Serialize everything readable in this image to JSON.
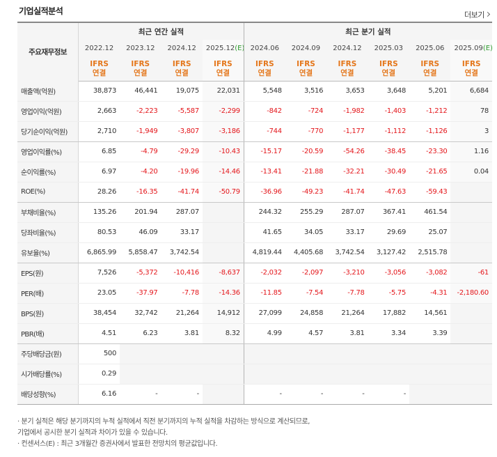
{
  "header": {
    "title": "기업실적분석",
    "more_label": "더보기"
  },
  "table": {
    "row_header_label": "주요재무정보",
    "groups": [
      {
        "label": "최근 연간 실적"
      },
      {
        "label": "최근 분기 실적"
      }
    ],
    "periods": [
      {
        "label": "2022.12",
        "est": false
      },
      {
        "label": "2023.12",
        "est": false
      },
      {
        "label": "2024.12",
        "est": false
      },
      {
        "label": "2025.12",
        "est": true,
        "est_mark": "(E)"
      },
      {
        "label": "2024.06",
        "est": false
      },
      {
        "label": "2024.09",
        "est": false
      },
      {
        "label": "2024.12",
        "est": false
      },
      {
        "label": "2025.03",
        "est": false
      },
      {
        "label": "2025.06",
        "est": false
      },
      {
        "label": "2025.09",
        "est": true,
        "est_mark": "(E)"
      }
    ],
    "acct_top": "IFRS",
    "acct_bottom": "연결",
    "rows": [
      {
        "label": "매출액(억원)",
        "values": [
          "38,873",
          "46,441",
          "19,075",
          "22,031",
          "5,548",
          "3,516",
          "3,653",
          "3,648",
          "5,201",
          "6,684"
        ]
      },
      {
        "label": "영업이익(억원)",
        "values": [
          "2,663",
          "-2,223",
          "-5,587",
          "-2,299",
          "-842",
          "-724",
          "-1,982",
          "-1,403",
          "-1,212",
          "78"
        ]
      },
      {
        "label": "당기순이익(억원)",
        "values": [
          "2,710",
          "-1,949",
          "-3,807",
          "-3,186",
          "-744",
          "-770",
          "-1,177",
          "-1,112",
          "-1,126",
          "3"
        ]
      },
      {
        "label": "영업이익률(%)",
        "values": [
          "6.85",
          "-4.79",
          "-29.29",
          "-10.43",
          "-15.17",
          "-20.59",
          "-54.26",
          "-38.45",
          "-23.30",
          "1.16"
        ]
      },
      {
        "label": "순이익률(%)",
        "values": [
          "6.97",
          "-4.20",
          "-19.96",
          "-14.46",
          "-13.41",
          "-21.88",
          "-32.21",
          "-30.49",
          "-21.65",
          "0.04"
        ]
      },
      {
        "label": "ROE(%)",
        "values": [
          "28.26",
          "-16.35",
          "-41.74",
          "-50.79",
          "-36.96",
          "-49.23",
          "-41.74",
          "-47.63",
          "-59.43",
          ""
        ]
      },
      {
        "label": "부채비율(%)",
        "values": [
          "135.26",
          "201.94",
          "287.07",
          "",
          "244.32",
          "255.29",
          "287.07",
          "367.41",
          "461.54",
          ""
        ]
      },
      {
        "label": "당좌비율(%)",
        "values": [
          "80.53",
          "46.09",
          "33.17",
          "",
          "41.65",
          "34.05",
          "33.17",
          "29.69",
          "25.07",
          ""
        ]
      },
      {
        "label": "유보율(%)",
        "values": [
          "6,865.99",
          "5,858.47",
          "3,742.54",
          "",
          "4,819.44",
          "4,405.68",
          "3,742.54",
          "3,127.42",
          "2,515.78",
          ""
        ]
      },
      {
        "label": "EPS(원)",
        "values": [
          "7,526",
          "-5,372",
          "-10,416",
          "-8,637",
          "-2,032",
          "-2,097",
          "-3,210",
          "-3,056",
          "-3,082",
          "-61"
        ]
      },
      {
        "label": "PER(배)",
        "values": [
          "23.05",
          "-37.97",
          "-7.78",
          "-14.36",
          "-11.85",
          "-7.54",
          "-7.78",
          "-5.75",
          "-4.31",
          "-2,180.60"
        ]
      },
      {
        "label": "BPS(원)",
        "values": [
          "38,454",
          "32,742",
          "21,264",
          "14,912",
          "27,099",
          "24,858",
          "21,264",
          "17,882",
          "14,561",
          ""
        ]
      },
      {
        "label": "PBR(배)",
        "values": [
          "4.51",
          "6.23",
          "3.81",
          "8.32",
          "4.99",
          "4.57",
          "3.81",
          "3.34",
          "3.39",
          ""
        ]
      },
      {
        "label": "주당배당금(원)",
        "values": [
          "500",
          "",
          "",
          "",
          "",
          "",
          "",
          "",
          "",
          ""
        ],
        "empty_from": 1
      },
      {
        "label": "시가배당률(%)",
        "values": [
          "0.29",
          "",
          "",
          "",
          "",
          "",
          "",
          "",
          "",
          ""
        ],
        "empty_from": 1
      },
      {
        "label": "배당성향(%)",
        "values": [
          "6.16",
          "-",
          "-",
          "",
          "-",
          "-",
          "-",
          "-",
          "",
          ""
        ],
        "empty_fill": [
          3,
          8,
          9
        ]
      }
    ]
  },
  "notes": [
    "· 분기 실적은 해당 분기까지의 누적 실적에서 직전 분기까지의 누적 실적을 차감하는 방식으로 계산되므로,",
    "  기업에서 공시한 분기 실적과 차이가 있을 수 있습니다.",
    "· 컨센서스(E) : 최근 3개월간 증권사에서 발표한 전망치의 평균값입니다."
  ],
  "colors": {
    "negative": "#e4161b",
    "ifrs": "#e4761a",
    "estimate_mark": "#2f9b2f"
  }
}
